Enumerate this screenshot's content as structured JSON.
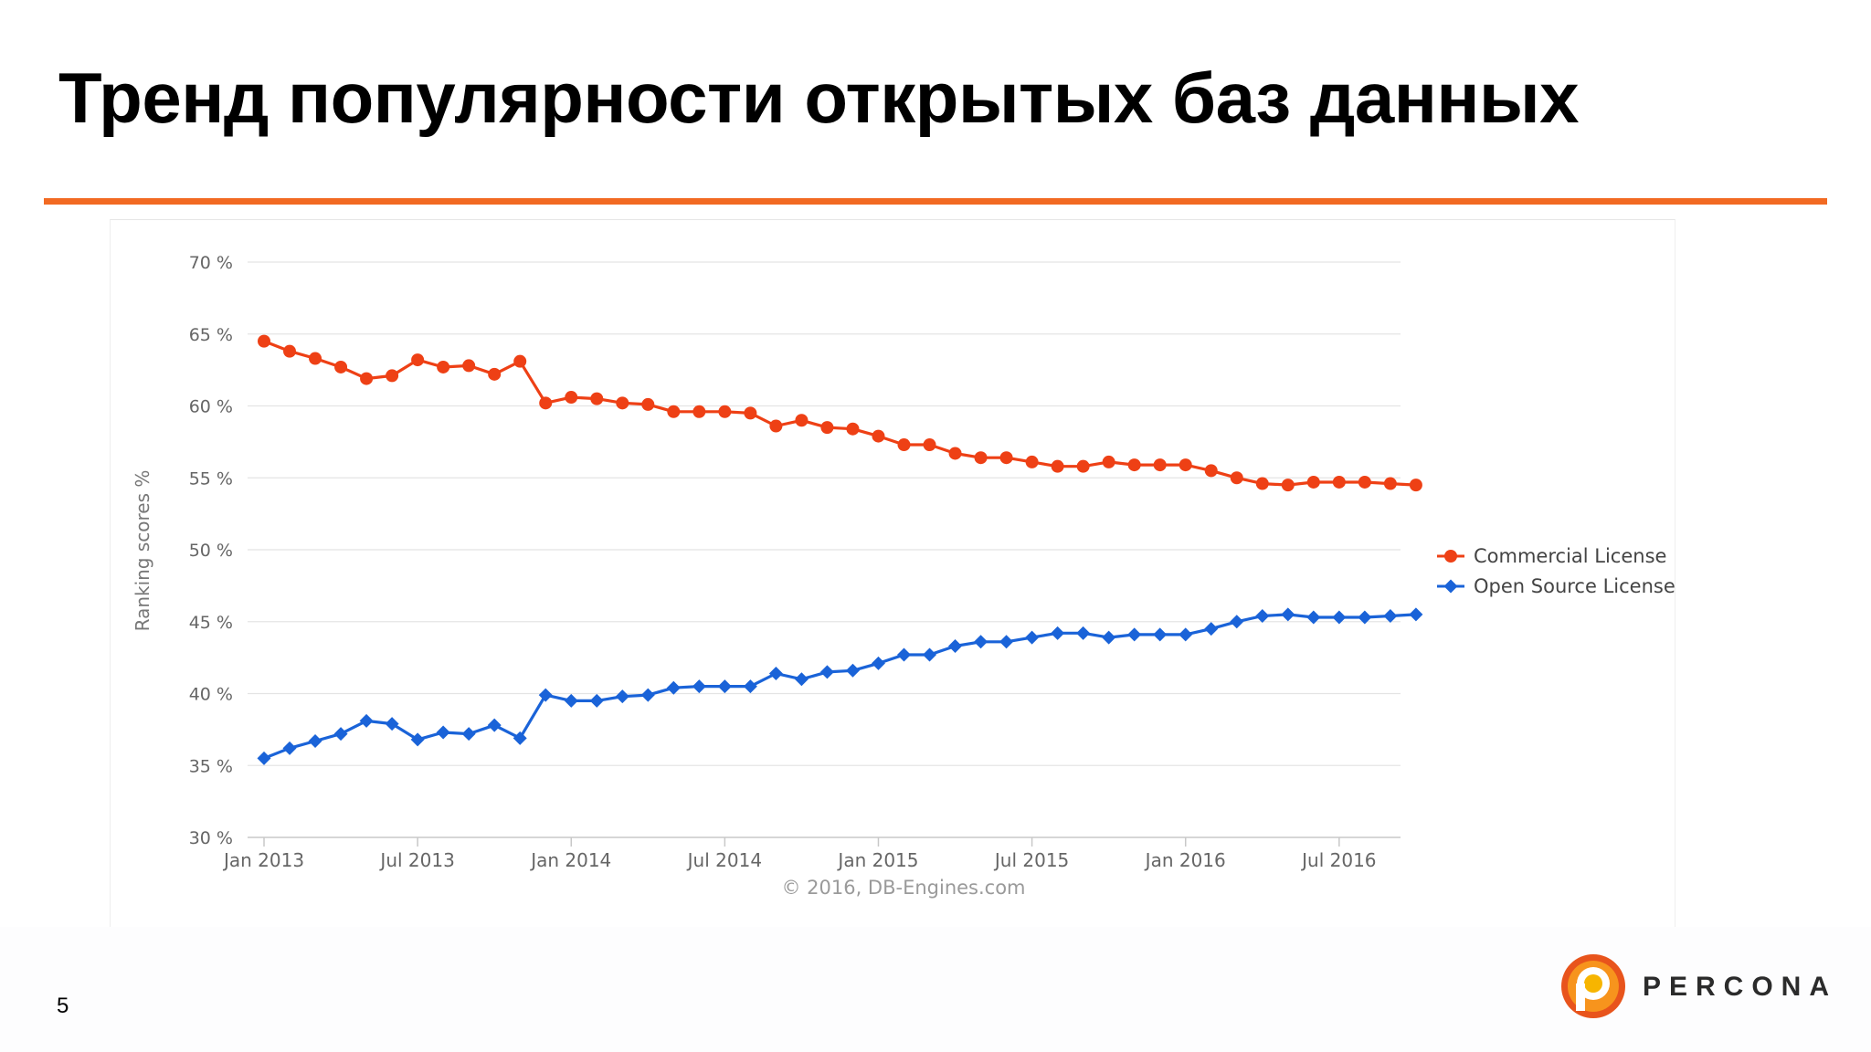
{
  "slide": {
    "title": "Тренд популярности открытых баз данных",
    "page_number": "5",
    "logo_text": "PERCONA",
    "accent_color": "#f26a22"
  },
  "chart_data": {
    "type": "line",
    "ylabel": "Ranking scores %",
    "ylim": [
      30,
      70
    ],
    "y_ticks": [
      "30 %",
      "35 %",
      "40 %",
      "45 %",
      "50 %",
      "55 %",
      "60 %",
      "65 %",
      "70 %"
    ],
    "x_ticks": [
      "Jan 2013",
      "Jul 2013",
      "Jan 2014",
      "Jul 2014",
      "Jan 2015",
      "Jul 2015",
      "Jan 2016",
      "Jul 2016"
    ],
    "x_start": "2013-01",
    "grid": true,
    "legend_position": "right",
    "credit": "© 2016, DB-Engines.com",
    "series": [
      {
        "name": "Commercial License",
        "color": "#ee4015",
        "marker": "circle",
        "values": [
          64.5,
          63.8,
          63.3,
          62.7,
          61.9,
          62.1,
          63.2,
          62.7,
          62.8,
          62.2,
          63.1,
          60.2,
          60.6,
          60.5,
          60.2,
          60.1,
          59.6,
          59.6,
          59.6,
          59.5,
          58.6,
          59.0,
          58.5,
          58.4,
          57.9,
          57.3,
          57.3,
          56.7,
          56.4,
          56.4,
          56.1,
          55.8,
          55.8,
          56.1,
          55.9,
          55.9,
          55.9,
          55.5,
          55.0,
          54.6,
          54.5,
          54.7,
          54.7,
          54.7,
          54.6,
          54.5
        ]
      },
      {
        "name": "Open Source License",
        "color": "#1a63d8",
        "marker": "diamond",
        "values": [
          35.5,
          36.2,
          36.7,
          37.2,
          38.1,
          37.9,
          36.8,
          37.3,
          37.2,
          37.8,
          36.9,
          39.9,
          39.5,
          39.5,
          39.8,
          39.9,
          40.4,
          40.5,
          40.5,
          40.5,
          41.4,
          41.0,
          41.5,
          41.6,
          42.1,
          42.7,
          42.7,
          43.3,
          43.6,
          43.6,
          43.9,
          44.2,
          44.2,
          43.9,
          44.1,
          44.1,
          44.1,
          44.5,
          45.0,
          45.4,
          45.5,
          45.3,
          45.3,
          45.3,
          45.4,
          45.5
        ]
      }
    ]
  }
}
